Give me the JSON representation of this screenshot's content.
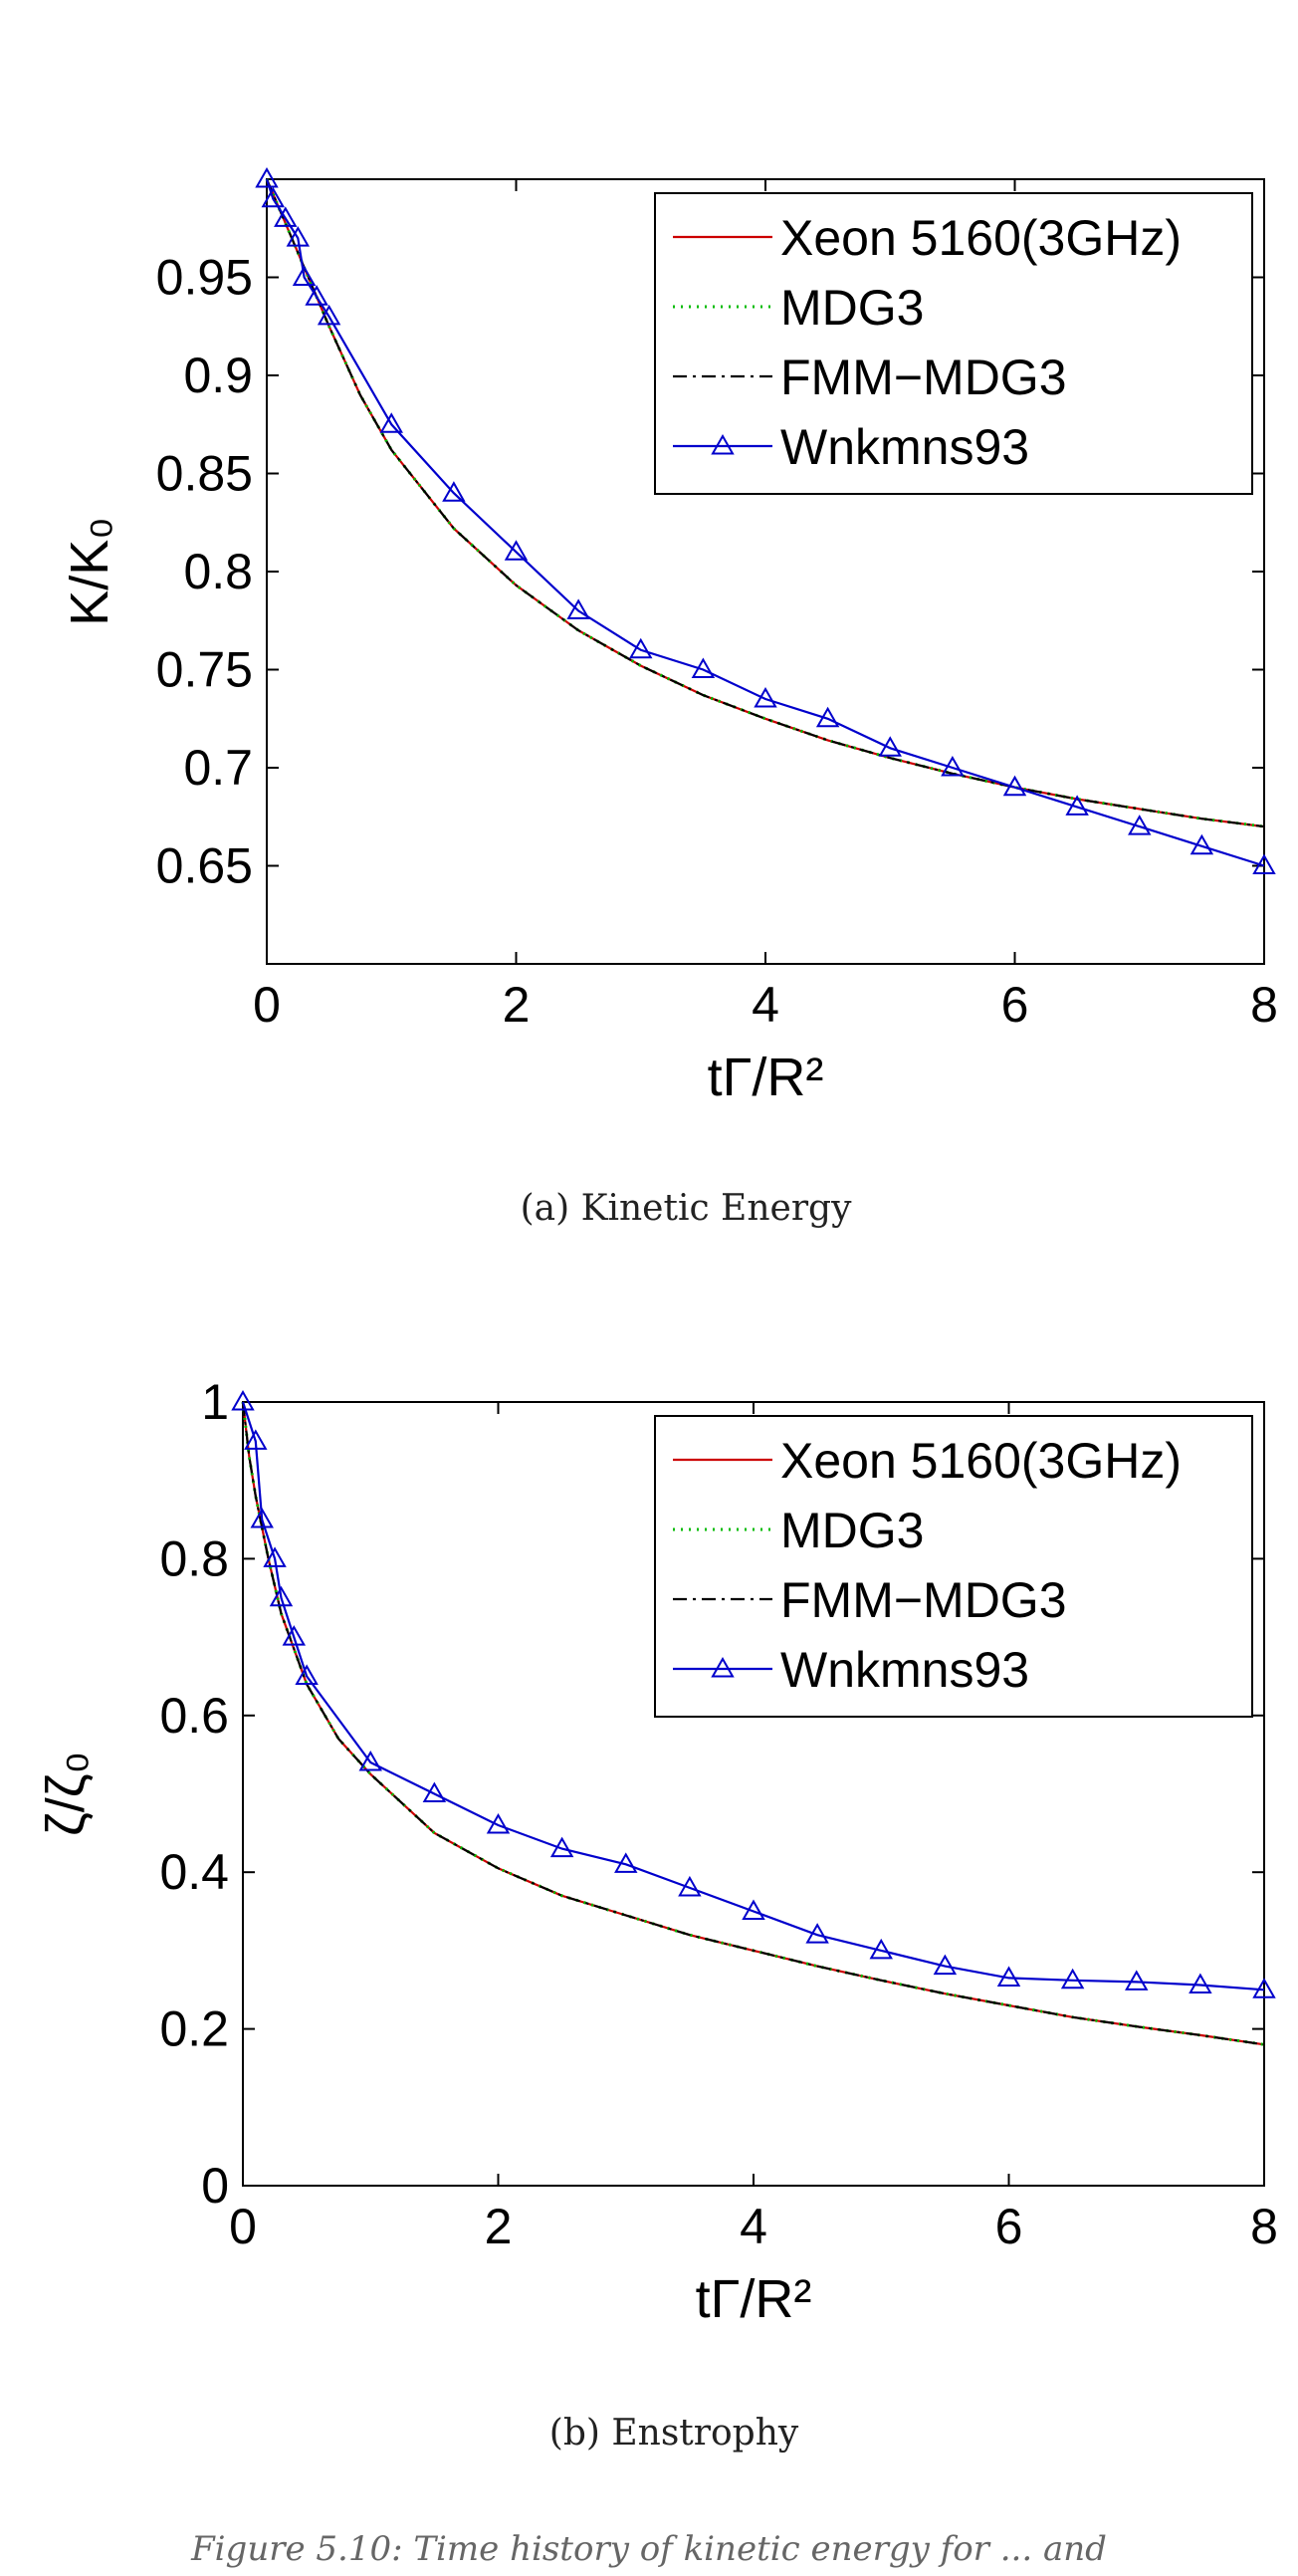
{
  "chart_data": [
    {
      "type": "line",
      "caption": "(a) Kinetic Energy",
      "xlabel": "tΓ/R²",
      "ylabel": "K/K₀",
      "xlim": [
        0,
        8
      ],
      "ylim": [
        0.6,
        1.0
      ],
      "xticks": [
        0,
        2,
        4,
        6,
        8
      ],
      "yticks": [
        0.65,
        0.7,
        0.75,
        0.8,
        0.85,
        0.9,
        0.95
      ],
      "ytick_labels": [
        "0.65",
        "0.7",
        "0.75",
        "0.8",
        "0.85",
        "0.9",
        "0.95"
      ],
      "legend_position": "top-right",
      "series": [
        {
          "name": "Xeon 5160(3GHz)",
          "color": "#cc0000",
          "style": "solid",
          "x": [
            0,
            0.1,
            0.2,
            0.3,
            0.5,
            0.75,
            1,
            1.5,
            2,
            2.5,
            3,
            3.5,
            4,
            4.5,
            5,
            5.5,
            6,
            6.5,
            7,
            7.5,
            8
          ],
          "y": [
            1.0,
            0.985,
            0.97,
            0.955,
            0.925,
            0.89,
            0.862,
            0.822,
            0.793,
            0.77,
            0.752,
            0.737,
            0.725,
            0.714,
            0.705,
            0.697,
            0.69,
            0.684,
            0.679,
            0.674,
            0.67
          ]
        },
        {
          "name": "MDG3",
          "color": "#00bb00",
          "style": "dotted",
          "x": [
            0,
            0.1,
            0.2,
            0.3,
            0.5,
            0.75,
            1,
            1.5,
            2,
            2.5,
            3,
            3.5,
            4,
            4.5,
            5,
            5.5,
            6,
            6.5,
            7,
            7.5,
            8
          ],
          "y": [
            1.0,
            0.985,
            0.97,
            0.955,
            0.925,
            0.89,
            0.862,
            0.822,
            0.793,
            0.77,
            0.752,
            0.737,
            0.725,
            0.714,
            0.705,
            0.697,
            0.69,
            0.684,
            0.679,
            0.674,
            0.67
          ]
        },
        {
          "name": "FMM−MDG3",
          "color": "#000000",
          "style": "dashdot",
          "x": [
            0,
            0.1,
            0.2,
            0.3,
            0.5,
            0.75,
            1,
            1.5,
            2,
            2.5,
            3,
            3.5,
            4,
            4.5,
            5,
            5.5,
            6,
            6.5,
            7,
            7.5,
            8
          ],
          "y": [
            1.0,
            0.985,
            0.97,
            0.955,
            0.925,
            0.89,
            0.862,
            0.822,
            0.793,
            0.77,
            0.752,
            0.737,
            0.725,
            0.714,
            0.705,
            0.697,
            0.69,
            0.684,
            0.679,
            0.674,
            0.67
          ]
        },
        {
          "name": "Wnkmns93",
          "color": "#0000cc",
          "style": "solid",
          "marker": "triangle",
          "x": [
            0,
            0.05,
            0.15,
            0.25,
            0.3,
            0.4,
            0.5,
            1,
            1.5,
            2,
            2.5,
            3,
            3.5,
            4,
            4.5,
            5,
            5.5,
            6,
            6.5,
            7,
            7.5,
            8
          ],
          "y": [
            1.0,
            0.99,
            0.98,
            0.97,
            0.95,
            0.94,
            0.93,
            0.875,
            0.84,
            0.81,
            0.78,
            0.76,
            0.75,
            0.735,
            0.725,
            0.71,
            0.7,
            0.69,
            0.68,
            0.67,
            0.66,
            0.65
          ]
        }
      ]
    },
    {
      "type": "line",
      "caption": "(b) Enstrophy",
      "xlabel": "tΓ/R²",
      "ylabel": "ζ/ζ₀",
      "xlim": [
        0,
        8
      ],
      "ylim": [
        0,
        1
      ],
      "xticks": [
        0,
        2,
        4,
        6,
        8
      ],
      "yticks": [
        0,
        0.2,
        0.4,
        0.6,
        0.8,
        1
      ],
      "ytick_labels": [
        "0",
        "0.2",
        "0.4",
        "0.6",
        "0.8",
        "1"
      ],
      "legend_position": "top-right",
      "series": [
        {
          "name": "Xeon 5160(3GHz)",
          "color": "#cc0000",
          "style": "solid",
          "x": [
            0,
            0.05,
            0.1,
            0.2,
            0.3,
            0.5,
            0.75,
            1,
            1.5,
            2,
            2.5,
            3,
            3.5,
            4,
            4.5,
            5,
            5.5,
            6,
            6.5,
            7,
            7.5,
            8
          ],
          "y": [
            1.0,
            0.93,
            0.88,
            0.8,
            0.73,
            0.64,
            0.57,
            0.525,
            0.45,
            0.405,
            0.37,
            0.345,
            0.32,
            0.3,
            0.28,
            0.262,
            0.245,
            0.23,
            0.215,
            0.203,
            0.192,
            0.18
          ]
        },
        {
          "name": "MDG3",
          "color": "#00bb00",
          "style": "dotted",
          "x": [
            0,
            0.05,
            0.1,
            0.2,
            0.3,
            0.5,
            0.75,
            1,
            1.5,
            2,
            2.5,
            3,
            3.5,
            4,
            4.5,
            5,
            5.5,
            6,
            6.5,
            7,
            7.5,
            8
          ],
          "y": [
            1.0,
            0.93,
            0.88,
            0.8,
            0.73,
            0.64,
            0.57,
            0.525,
            0.45,
            0.405,
            0.37,
            0.345,
            0.32,
            0.3,
            0.28,
            0.262,
            0.245,
            0.23,
            0.215,
            0.203,
            0.192,
            0.18
          ]
        },
        {
          "name": "FMM−MDG3",
          "color": "#000000",
          "style": "dashdot",
          "x": [
            0,
            0.05,
            0.1,
            0.2,
            0.3,
            0.5,
            0.75,
            1,
            1.5,
            2,
            2.5,
            3,
            3.5,
            4,
            4.5,
            5,
            5.5,
            6,
            6.5,
            7,
            7.5,
            8
          ],
          "y": [
            1.0,
            0.93,
            0.88,
            0.8,
            0.73,
            0.64,
            0.57,
            0.525,
            0.45,
            0.405,
            0.37,
            0.345,
            0.32,
            0.3,
            0.28,
            0.262,
            0.245,
            0.23,
            0.215,
            0.203,
            0.192,
            0.18
          ]
        },
        {
          "name": "Wnkmns93",
          "color": "#0000cc",
          "style": "solid",
          "marker": "triangle",
          "x": [
            0,
            0.1,
            0.15,
            0.25,
            0.3,
            0.4,
            0.5,
            1,
            1.5,
            2,
            2.5,
            3,
            3.5,
            4,
            4.5,
            5,
            5.5,
            6,
            6.5,
            7,
            7.5,
            8
          ],
          "y": [
            1.0,
            0.95,
            0.85,
            0.8,
            0.75,
            0.7,
            0.65,
            0.54,
            0.5,
            0.46,
            0.43,
            0.41,
            0.38,
            0.35,
            0.32,
            0.3,
            0.28,
            0.265,
            0.262,
            0.26,
            0.256,
            0.25
          ]
        }
      ]
    }
  ],
  "bottom_caption": "Figure 5.10: Time history of kinetic energy for ... and"
}
